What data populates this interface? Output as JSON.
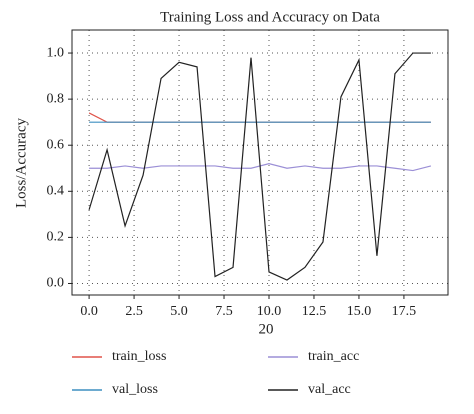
{
  "chart_data": {
    "type": "line",
    "title": "Training Loss and Accuracy on Data",
    "xlabel": "20",
    "ylabel": "Loss/Accuracy",
    "x": [
      0,
      1,
      2,
      3,
      4,
      5,
      6,
      7,
      8,
      9,
      10,
      11,
      12,
      13,
      14,
      15,
      16,
      17,
      18,
      19
    ],
    "series": [
      {
        "name": "train_loss",
        "color": "#e0544a",
        "values": [
          0.74,
          0.7,
          0.7,
          0.7,
          0.7,
          0.7,
          0.7,
          0.7,
          0.7,
          0.7,
          0.7,
          0.7,
          0.7,
          0.7,
          0.7,
          0.7,
          0.7,
          0.7,
          0.7,
          0.7
        ]
      },
      {
        "name": "val_loss",
        "color": "#3d8fc0",
        "values": [
          0.7,
          0.7,
          0.7,
          0.7,
          0.7,
          0.7,
          0.7,
          0.7,
          0.7,
          0.7,
          0.7,
          0.7,
          0.7,
          0.7,
          0.7,
          0.7,
          0.7,
          0.7,
          0.7,
          0.7
        ]
      },
      {
        "name": "train_acc",
        "color": "#9b8fd6",
        "values": [
          0.5,
          0.5,
          0.51,
          0.5,
          0.51,
          0.51,
          0.51,
          0.51,
          0.5,
          0.5,
          0.52,
          0.5,
          0.51,
          0.5,
          0.5,
          0.51,
          0.51,
          0.5,
          0.49,
          0.51
        ]
      },
      {
        "name": "val_acc",
        "color": "#222222",
        "values": [
          0.32,
          0.58,
          0.25,
          0.47,
          0.89,
          0.96,
          0.94,
          0.03,
          0.07,
          0.98,
          0.05,
          0.015,
          0.07,
          0.18,
          0.81,
          0.97,
          0.12,
          0.91,
          1.0,
          1.0
        ]
      }
    ],
    "xlim": [
      -0.95,
      19.95
    ],
    "xticks": [
      {
        "value": 0,
        "label": "0.0"
      },
      {
        "value": 2.5,
        "label": "2.5"
      },
      {
        "value": 5,
        "label": "5.0"
      },
      {
        "value": 7.5,
        "label": "7.5"
      },
      {
        "value": 10,
        "label": "10.0"
      },
      {
        "value": 12.5,
        "label": "12.5"
      },
      {
        "value": 15,
        "label": "15.0"
      },
      {
        "value": 17.5,
        "label": "17.5"
      }
    ],
    "ylim": [
      -0.05,
      1.1
    ],
    "yticks": [
      {
        "value": 0,
        "label": "0.0"
      },
      {
        "value": 0.2,
        "label": "0.2"
      },
      {
        "value": 0.4,
        "label": "0.4"
      },
      {
        "value": 0.6,
        "label": "0.6"
      },
      {
        "value": 0.8,
        "label": "0.8"
      },
      {
        "value": 1,
        "label": "1.0"
      }
    ],
    "grid": true
  }
}
